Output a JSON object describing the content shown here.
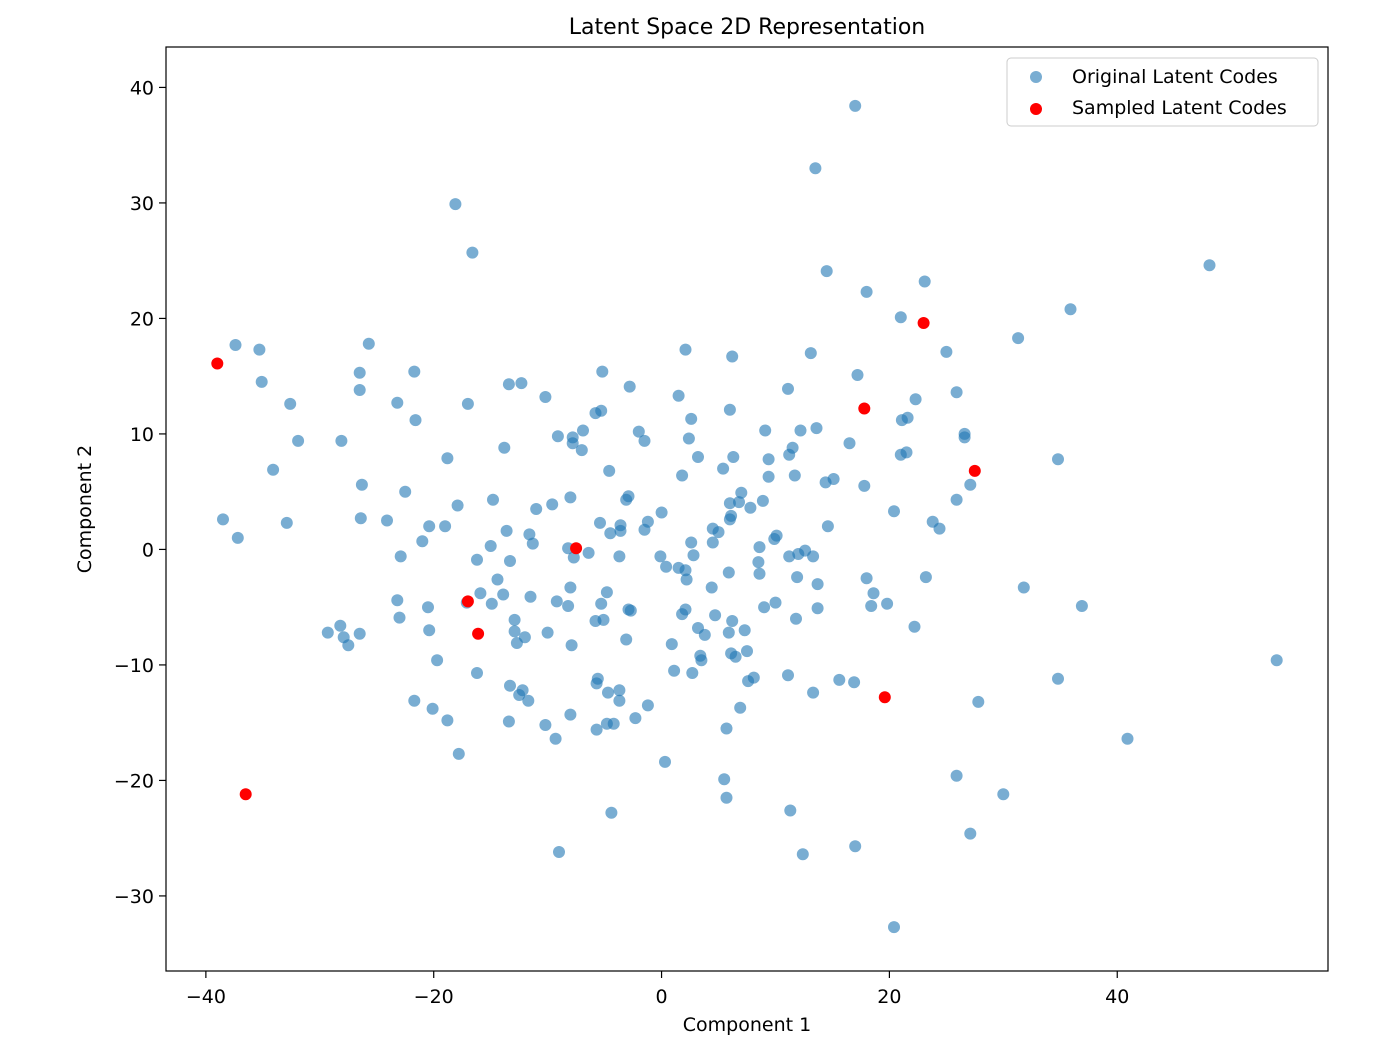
{
  "chart_data": {
    "type": "scatter",
    "title": "Latent Space 2D Representation",
    "xlabel": "Component 1",
    "ylabel": "Component 2",
    "xlim": [
      -43.5,
      58.5
    ],
    "ylim": [
      -36.5,
      43.5
    ],
    "xticks": [
      -40,
      -20,
      0,
      20,
      40
    ],
    "yticks": [
      -30,
      -20,
      -10,
      0,
      10,
      20,
      30,
      40
    ],
    "xtick_labels": [
      "−40",
      "−20",
      "0",
      "20",
      "40"
    ],
    "ytick_labels": [
      "−30",
      "−20",
      "−10",
      "0",
      "10",
      "20",
      "30",
      "40"
    ],
    "grid": false,
    "legend_position": "top-right",
    "series": [
      {
        "name": "Original Latent Codes",
        "color": "#1f77b4",
        "opacity": 0.6,
        "points": [
          [
            17,
            38.4
          ],
          [
            13.5,
            33
          ],
          [
            48.1,
            24.6
          ],
          [
            -18.1,
            29.9
          ],
          [
            -16.6,
            25.7
          ],
          [
            14.5,
            24.1
          ],
          [
            18,
            22.3
          ],
          [
            23.1,
            23.2
          ],
          [
            35.9,
            20.8
          ],
          [
            21,
            20.1
          ],
          [
            31.3,
            18.3
          ],
          [
            25,
            17.1
          ],
          [
            -37.4,
            17.7
          ],
          [
            -35.3,
            17.3
          ],
          [
            -25.7,
            17.8
          ],
          [
            2.1,
            17.3
          ],
          [
            6.2,
            16.7
          ],
          [
            13.1,
            17
          ],
          [
            -26.5,
            15.3
          ],
          [
            -21.7,
            15.4
          ],
          [
            -35.1,
            14.5
          ],
          [
            -26.5,
            13.8
          ],
          [
            -32.6,
            12.6
          ],
          [
            -23.2,
            12.7
          ],
          [
            -17,
            12.6
          ],
          [
            -13.4,
            14.3
          ],
          [
            -12.3,
            14.4
          ],
          [
            -5.2,
            15.4
          ],
          [
            -2.8,
            14.1
          ],
          [
            -10.2,
            13.2
          ],
          [
            1.5,
            13.3
          ],
          [
            11.1,
            13.9
          ],
          [
            17.2,
            15.1
          ],
          [
            25.9,
            13.6
          ],
          [
            22.3,
            13
          ],
          [
            -21.6,
            11.2
          ],
          [
            -5.3,
            12
          ],
          [
            -5.8,
            11.8
          ],
          [
            6,
            12.1
          ],
          [
            2.6,
            11.3
          ],
          [
            21.1,
            11.2
          ],
          [
            21.6,
            11.4
          ],
          [
            -31.9,
            9.4
          ],
          [
            -28.1,
            9.4
          ],
          [
            -18.8,
            7.9
          ],
          [
            -9.1,
            9.8
          ],
          [
            -7.8,
            9.7
          ],
          [
            -7.8,
            9.2
          ],
          [
            -7,
            8.6
          ],
          [
            -6.9,
            10.3
          ],
          [
            -13.8,
            8.8
          ],
          [
            -2,
            10.2
          ],
          [
            -1.5,
            9.4
          ],
          [
            2.4,
            9.6
          ],
          [
            3.2,
            8
          ],
          [
            6.3,
            8
          ],
          [
            9.1,
            10.3
          ],
          [
            9.4,
            7.8
          ],
          [
            11.2,
            8.2
          ],
          [
            11.5,
            8.8
          ],
          [
            12.2,
            10.3
          ],
          [
            13.6,
            10.5
          ],
          [
            16.5,
            9.2
          ],
          [
            21,
            8.2
          ],
          [
            21.5,
            8.4
          ],
          [
            26.6,
            10
          ],
          [
            26.6,
            9.7
          ],
          [
            34.8,
            7.8
          ],
          [
            -34.1,
            6.9
          ],
          [
            -26.3,
            5.6
          ],
          [
            -22.5,
            5
          ],
          [
            -17.9,
            3.8
          ],
          [
            -14.8,
            4.3
          ],
          [
            -8,
            4.5
          ],
          [
            -4.6,
            6.8
          ],
          [
            -2.9,
            4.6
          ],
          [
            -3.1,
            4.3
          ],
          [
            1.8,
            6.4
          ],
          [
            5.4,
            7
          ],
          [
            7,
            4.9
          ],
          [
            6.8,
            4.1
          ],
          [
            6,
            4
          ],
          [
            9.4,
            6.3
          ],
          [
            11.7,
            6.4
          ],
          [
            14.4,
            5.8
          ],
          [
            15.1,
            6.1
          ],
          [
            17.8,
            5.5
          ],
          [
            27.1,
            5.6
          ],
          [
            25.9,
            4.3
          ],
          [
            -38.5,
            2.6
          ],
          [
            -32.9,
            2.3
          ],
          [
            -26.4,
            2.7
          ],
          [
            -24.1,
            2.5
          ],
          [
            -20.4,
            2
          ],
          [
            -19,
            2
          ],
          [
            -21,
            0.7
          ],
          [
            -11,
            3.5
          ],
          [
            -9.6,
            3.9
          ],
          [
            -5.4,
            2.3
          ],
          [
            -3.6,
            2.1
          ],
          [
            -1.2,
            2.4
          ],
          [
            0,
            3.2
          ],
          [
            -4.5,
            1.4
          ],
          [
            -3.6,
            1.6
          ],
          [
            -1.5,
            1.7
          ],
          [
            -6.4,
            -0.3
          ],
          [
            -7.7,
            -0.7
          ],
          [
            -13.6,
            1.6
          ],
          [
            -15,
            0.3
          ],
          [
            -11.6,
            1.3
          ],
          [
            -11.3,
            0.5
          ],
          [
            -8.2,
            0.1
          ],
          [
            4.5,
            1.8
          ],
          [
            5,
            1.5
          ],
          [
            4.5,
            0.6
          ],
          [
            2.6,
            0.6
          ],
          [
            6,
            2.6
          ],
          [
            6.1,
            2.9
          ],
          [
            7.8,
            3.6
          ],
          [
            8.9,
            4.2
          ],
          [
            10.1,
            1.2
          ],
          [
            9.9,
            0.9
          ],
          [
            8.6,
            0.2
          ],
          [
            14.6,
            2
          ],
          [
            20.4,
            3.3
          ],
          [
            23.8,
            2.4
          ],
          [
            24.4,
            1.8
          ],
          [
            -37.2,
            1
          ],
          [
            -22.9,
            -0.6
          ],
          [
            -16.2,
            -0.9
          ],
          [
            -13.3,
            -1
          ],
          [
            -3.7,
            -0.6
          ],
          [
            -0.1,
            -0.6
          ],
          [
            0.4,
            -1.5
          ],
          [
            1.5,
            -1.6
          ],
          [
            2.1,
            -1.8
          ],
          [
            2.8,
            -0.5
          ],
          [
            2.2,
            -2.6
          ],
          [
            5.9,
            -2
          ],
          [
            8.5,
            -1.1
          ],
          [
            8.6,
            -2.1
          ],
          [
            11.2,
            -0.6
          ],
          [
            12,
            -0.4
          ],
          [
            12.6,
            -0.1
          ],
          [
            13.3,
            -0.6
          ],
          [
            11.9,
            -2.4
          ],
          [
            13.7,
            -3
          ],
          [
            18,
            -2.5
          ],
          [
            23.2,
            -2.4
          ],
          [
            31.8,
            -3.3
          ],
          [
            -23.2,
            -4.4
          ],
          [
            -17.1,
            -4.6
          ],
          [
            -15.9,
            -3.8
          ],
          [
            -14.9,
            -4.7
          ],
          [
            -14.4,
            -2.6
          ],
          [
            -13.9,
            -3.9
          ],
          [
            -11.5,
            -4.1
          ],
          [
            -8,
            -3.3
          ],
          [
            -9.2,
            -4.5
          ],
          [
            -8.2,
            -4.9
          ],
          [
            -4.8,
            -3.7
          ],
          [
            -5.3,
            -4.7
          ],
          [
            -2.9,
            -5.2
          ],
          [
            -2.7,
            -5.3
          ],
          [
            1.8,
            -5.6
          ],
          [
            2.1,
            -5.2
          ],
          [
            4.4,
            -3.3
          ],
          [
            4.7,
            -5.7
          ],
          [
            9,
            -5
          ],
          [
            10,
            -4.6
          ],
          [
            11.8,
            -6
          ],
          [
            13.7,
            -5.1
          ],
          [
            18.6,
            -3.8
          ],
          [
            18.4,
            -4.9
          ],
          [
            19.8,
            -4.7
          ],
          [
            36.9,
            -4.9
          ],
          [
            -23,
            -5.9
          ],
          [
            -20.5,
            -5
          ],
          [
            -28.2,
            -6.6
          ],
          [
            -29.3,
            -7.2
          ],
          [
            -27.9,
            -7.6
          ],
          [
            -27.5,
            -8.3
          ],
          [
            -26.5,
            -7.3
          ],
          [
            -20.4,
            -7
          ],
          [
            -12.9,
            -6.1
          ],
          [
            -12.9,
            -7.1
          ],
          [
            -12.7,
            -8.1
          ],
          [
            -12,
            -7.6
          ],
          [
            -10,
            -7.2
          ],
          [
            -7.9,
            -8.3
          ],
          [
            -5.8,
            -6.2
          ],
          [
            -5.1,
            -6.1
          ],
          [
            -3.1,
            -7.8
          ],
          [
            0.9,
            -8.2
          ],
          [
            3.2,
            -6.8
          ],
          [
            3.8,
            -7.4
          ],
          [
            5.9,
            -7.2
          ],
          [
            6.2,
            -6.2
          ],
          [
            7.3,
            -7
          ],
          [
            22.2,
            -6.7
          ],
          [
            -19.7,
            -9.6
          ],
          [
            -16.2,
            -10.7
          ],
          [
            -13.3,
            -11.8
          ],
          [
            -12.2,
            -12.2
          ],
          [
            -12.5,
            -12.6
          ],
          [
            -11.7,
            -13.1
          ],
          [
            -5.7,
            -11.6
          ],
          [
            -5.6,
            -11.2
          ],
          [
            -4.7,
            -12.4
          ],
          [
            -3.7,
            -12.2
          ],
          [
            -3.7,
            -13.1
          ],
          [
            -1.2,
            -13.5
          ],
          [
            1.1,
            -10.5
          ],
          [
            2.7,
            -10.7
          ],
          [
            3.4,
            -9.2
          ],
          [
            3.5,
            -9.6
          ],
          [
            6.1,
            -9
          ],
          [
            6.5,
            -9.3
          ],
          [
            7.5,
            -8.8
          ],
          [
            7.6,
            -11.4
          ],
          [
            8.1,
            -11.1
          ],
          [
            6.9,
            -13.7
          ],
          [
            11.1,
            -10.9
          ],
          [
            13.3,
            -12.4
          ],
          [
            15.6,
            -11.3
          ],
          [
            16.9,
            -11.5
          ],
          [
            27.8,
            -13.2
          ],
          [
            34.8,
            -11.2
          ],
          [
            54,
            -9.6
          ],
          [
            -21.7,
            -13.1
          ],
          [
            -20.1,
            -13.8
          ],
          [
            -18.8,
            -14.8
          ],
          [
            -17.8,
            -17.7
          ],
          [
            -13.4,
            -14.9
          ],
          [
            -10.2,
            -15.2
          ],
          [
            -9.3,
            -16.4
          ],
          [
            -8,
            -14.3
          ],
          [
            -5.7,
            -15.6
          ],
          [
            -4.8,
            -15.1
          ],
          [
            -4.2,
            -15.1
          ],
          [
            -2.3,
            -14.6
          ],
          [
            5.7,
            -15.5
          ],
          [
            0.3,
            -18.4
          ],
          [
            40.9,
            -16.4
          ],
          [
            5.5,
            -19.9
          ],
          [
            5.7,
            -21.5
          ],
          [
            11.3,
            -22.6
          ],
          [
            25.9,
            -19.6
          ],
          [
            30,
            -21.2
          ],
          [
            -4.4,
            -22.8
          ],
          [
            27.1,
            -24.6
          ],
          [
            -9,
            -26.2
          ],
          [
            12.4,
            -26.4
          ],
          [
            17,
            -25.7
          ],
          [
            20.4,
            -32.7
          ]
        ]
      },
      {
        "name": "Sampled Latent Codes",
        "color": "#ff0000",
        "opacity": 1,
        "points": [
          [
            -39,
            16.1
          ],
          [
            23,
            19.6
          ],
          [
            17.8,
            12.2
          ],
          [
            27.5,
            6.8
          ],
          [
            -7.5,
            0.1
          ],
          [
            -17,
            -4.5
          ],
          [
            -16.1,
            -7.3
          ],
          [
            19.6,
            -12.8
          ],
          [
            -36.5,
            -21.2
          ]
        ]
      }
    ]
  }
}
